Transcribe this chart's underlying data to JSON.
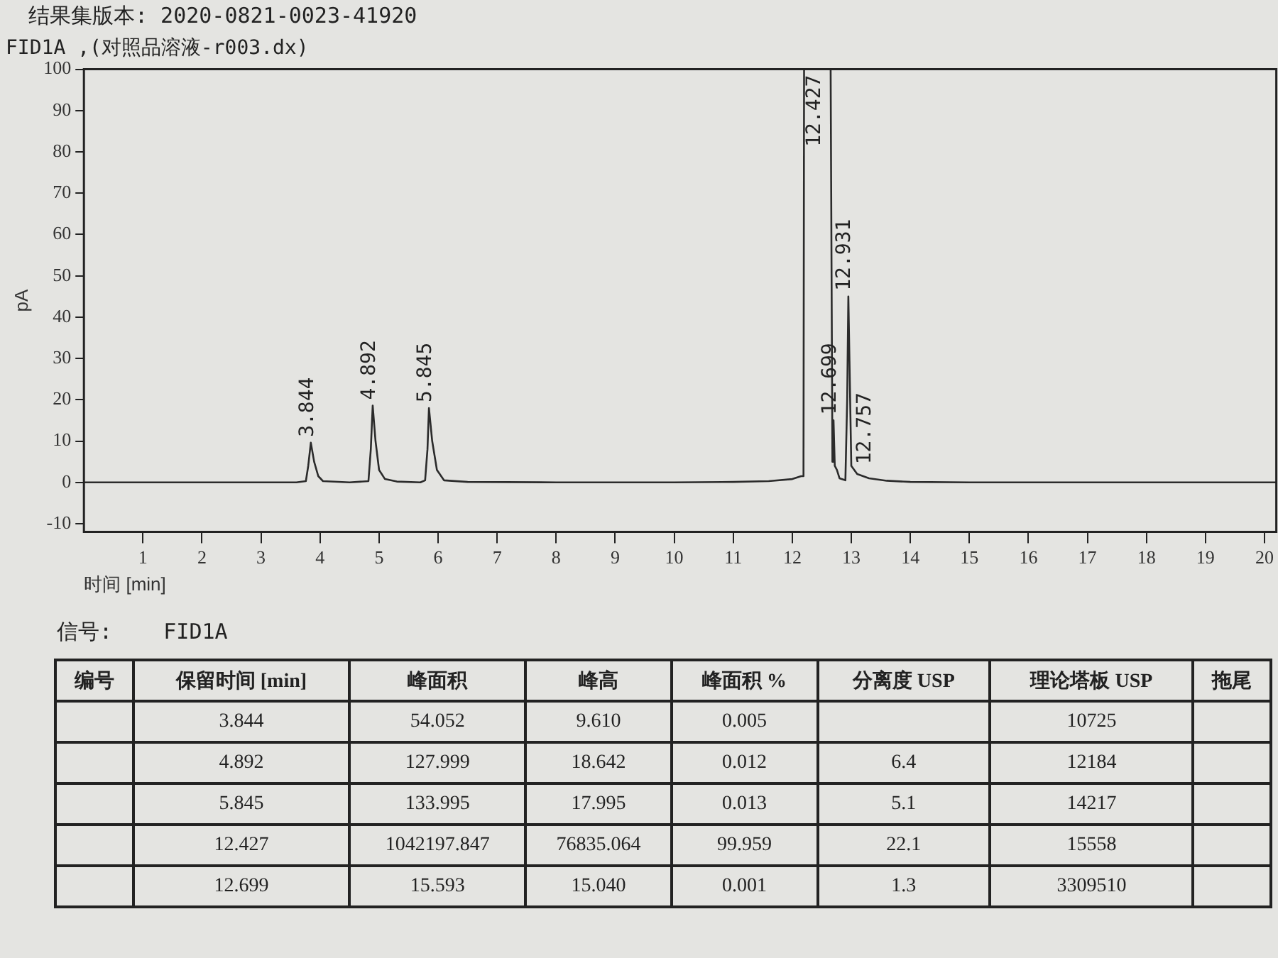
{
  "chart_data": {
    "type": "line",
    "title": "FID1A ,(对照品溶液-r003.dx)",
    "xlabel": "时间 [min]",
    "ylabel": "pA",
    "x": [
      0,
      1,
      2,
      3,
      3.6,
      3.76,
      3.8,
      3.844,
      3.9,
      3.97,
      4.05,
      4.5,
      4.82,
      4.86,
      4.892,
      4.94,
      5.0,
      5.1,
      5.3,
      5.7,
      5.78,
      5.82,
      5.845,
      5.9,
      5.98,
      6.1,
      6.5,
      8,
      10,
      11,
      11.6,
      12.0,
      12.15,
      12.19,
      12.2,
      12.65,
      12.68,
      12.699,
      12.72,
      12.757,
      12.8,
      12.9,
      12.93,
      12.95,
      13.0,
      13.1,
      13.3,
      13.6,
      14,
      15,
      17,
      20.2
    ],
    "series": [
      {
        "color": "#2b2b2b",
        "values": [
          0,
          0,
          0,
          0,
          0,
          0.3,
          4,
          9.6,
          5,
          1.5,
          0.3,
          0,
          0.3,
          8,
          18.6,
          10,
          3,
          0.8,
          0.2,
          0,
          0.5,
          8,
          18.0,
          10,
          3,
          0.5,
          0.1,
          0,
          0,
          0.1,
          0.3,
          0.8,
          1.5,
          1.5,
          100,
          100,
          5,
          15,
          4,
          3,
          1,
          0.5,
          20,
          45,
          4,
          2,
          1,
          0.4,
          0.1,
          0,
          0,
          0
        ]
      }
    ],
    "xlim": [
      0,
      20.2
    ],
    "xticks": [
      1,
      2,
      3,
      4,
      5,
      6,
      7,
      8,
      9,
      10,
      11,
      12,
      13,
      14,
      15,
      16,
      17,
      18,
      19,
      20
    ],
    "ylim": [
      -12,
      100
    ],
    "yticks": [
      -10,
      0,
      10,
      20,
      30,
      40,
      50,
      60,
      70,
      80,
      90,
      100
    ],
    "grid": false,
    "legend": false,
    "marker": "none",
    "line_style": "solid",
    "annotations": [
      "结果集版本:  2020-0821-0023-41920",
      "信号:    FID1A",
      "编号\t保留时间 [min]\t峰面积\t峰高\t峰面积 %\t分离度 USP\t理论塔板 USP\t拖尾",
      "\t3.844\t54.052\t9.610\t0.005\t\t10725\t",
      "\t4.892\t127.999\t18.642\t0.012\t6.4\t12184\t",
      "\t5.845\t133.995\t17.995\t0.013\t5.1\t14217\t",
      "\t12.427\t1042197.847\t76835.064\t99.959\t22.1\t15558\t",
      "\t12.699\t15.593\t15.040\t0.001\t1.3\t3309510\t",
      {
        "text": "3.844",
        "x": 3.844,
        "y": 9.6
      },
      {
        "text": "4.892",
        "x": 4.892,
        "y": 18.6
      },
      {
        "text": "5.845",
        "x": 5.845,
        "y": 18.0
      },
      {
        "text": "12.427",
        "x": 12.427,
        "y": 100
      },
      {
        "text": "12.699",
        "x": 12.699,
        "y": 15
      },
      {
        "text": "12.757",
        "x": 12.757,
        "y": 3
      },
      {
        "text": "12.931",
        "x": 12.931,
        "y": 45
      }
    ]
  }
}
